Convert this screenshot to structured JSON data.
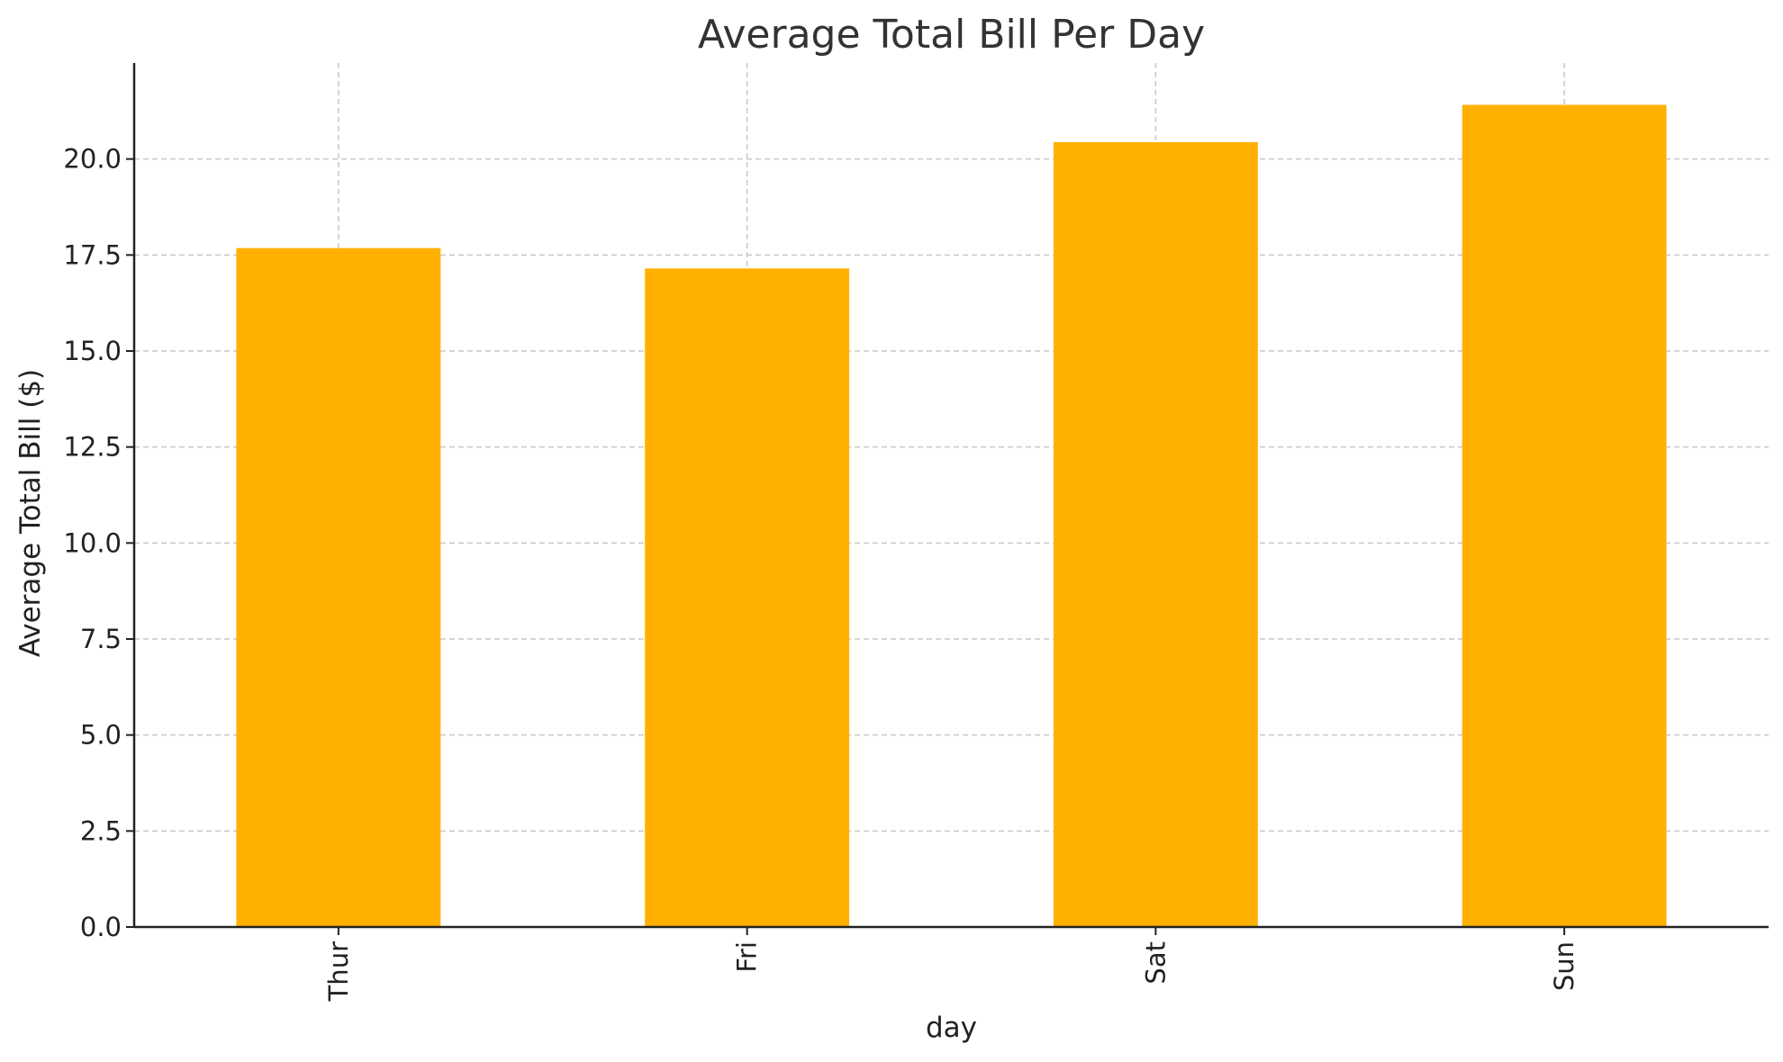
{
  "chart_data": {
    "type": "bar",
    "title": "Average Total Bill Per Day",
    "xlabel": "day",
    "ylabel": "Average Total Bill ($)",
    "categories": [
      "Thur",
      "Fri",
      "Sat",
      "Sun"
    ],
    "values": [
      17.68,
      17.15,
      20.44,
      21.41
    ],
    "ylim": [
      0,
      22.5
    ],
    "yticks": [
      "0.0",
      "2.5",
      "5.0",
      "7.5",
      "10.0",
      "12.5",
      "15.0",
      "17.5",
      "20.0"
    ],
    "ytick_values": [
      0,
      2.5,
      5,
      7.5,
      10,
      12.5,
      15,
      17.5,
      20
    ],
    "bar_color": "#FFB000",
    "grid": true,
    "legend": "none",
    "xtick_rotation": "vertical"
  }
}
